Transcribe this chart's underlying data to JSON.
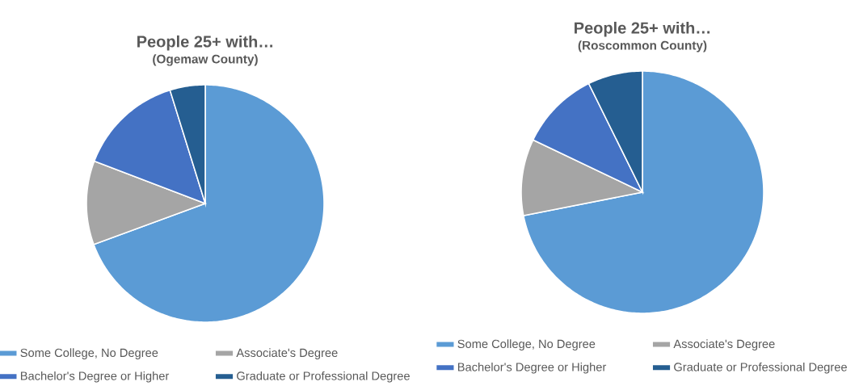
{
  "chart_data": [
    {
      "type": "pie",
      "title": "People 25+ with…",
      "subtitle": "(Ogemaw County)",
      "categories": [
        "Some College, No Degree",
        "Associate's Degree",
        "Bachelor's Degree or Higher",
        "Graduate or Professional Degree"
      ],
      "values": [
        69.4,
        11.4,
        14.4,
        4.8
      ],
      "colors": [
        "#5b9bd5",
        "#a5a5a5",
        "#4472c4",
        "#255e91"
      ],
      "legend": "bottom"
    },
    {
      "type": "pie",
      "title": "People 25+ with…",
      "subtitle": "(Roscommon County)",
      "categories": [
        "Some College, No Degree",
        "Associate's Degree",
        "Bachelor's Degree or Higher",
        "Graduate or Professional Degree"
      ],
      "values": [
        71.9,
        10.2,
        10.6,
        7.3
      ],
      "colors": [
        "#5b9bd5",
        "#a5a5a5",
        "#4472c4",
        "#255e91"
      ],
      "legend": "bottom"
    }
  ]
}
